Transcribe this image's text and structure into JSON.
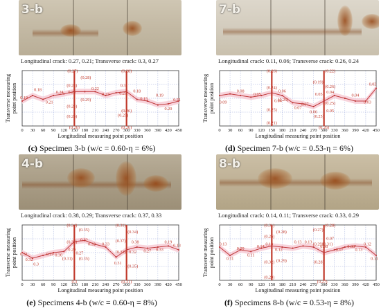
{
  "axis": {
    "xlabel": "Longitudinal measuring point position",
    "ylabel_line1": "Transverse measuring",
    "ylabel_line2": "point position",
    "xticks": [
      0,
      30,
      60,
      90,
      120,
      150,
      180,
      210,
      240,
      270,
      300,
      330,
      360,
      390,
      420,
      450
    ]
  },
  "colors": {
    "curve": "#c0393b",
    "band": "#f6c9d3",
    "crack": "#c0392b",
    "grid": "#8a9ad6"
  },
  "chart_data": [
    {
      "type": "line",
      "id": "3-b",
      "photo_label": "3-b",
      "crack_text": "Longitudinal crack: 0.27, 0.21; Transverse crack: 0.3, 0.27",
      "caption_bold": "(c)",
      "caption_text": " Specimen 3-b (w/c = 0.60-η = 6%)",
      "x": [
        0,
        30,
        60,
        90,
        120,
        150,
        180,
        210,
        240,
        270,
        300,
        330,
        360,
        390,
        420,
        450
      ],
      "y": [
        0.45,
        0.55,
        0.48,
        0.55,
        0.58,
        0.62,
        0.62,
        0.62,
        0.55,
        0.6,
        0.62,
        0.48,
        0.45,
        0.38,
        0.4,
        0.45
      ],
      "xlim": [
        0,
        450
      ],
      "ylim": [
        0,
        1
      ],
      "cracks_x": [
        150,
        300
      ],
      "labels": [
        {
          "t": "0.19",
          "x": 5,
          "y": 0.52
        },
        {
          "t": "0.18",
          "x": 45,
          "y": 0.66
        },
        {
          "t": "0.21",
          "x": 78,
          "y": 0.44
        },
        {
          "t": "0.24",
          "x": 108,
          "y": 0.62
        },
        {
          "t": "(0.27)",
          "x": 145,
          "y": 1.0
        },
        {
          "t": "(0.28)",
          "x": 143,
          "y": 0.74
        },
        {
          "t": "0.23",
          "x": 143,
          "y": 0.62
        },
        {
          "t": "(0.24)",
          "x": 143,
          "y": 0.36
        },
        {
          "t": "(0.26)",
          "x": 143,
          "y": 0.18
        },
        {
          "t": "(0.28)",
          "x": 183,
          "y": 0.88
        },
        {
          "t": "0.22",
          "x": 210,
          "y": 0.68
        },
        {
          "t": "(0.29)",
          "x": 183,
          "y": 0.48
        },
        {
          "t": "0.23",
          "x": 240,
          "y": 0.58
        },
        {
          "t": "(0.28)",
          "x": 300,
          "y": 1.0
        },
        {
          "t": "0.3",
          "x": 290,
          "y": 0.74
        },
        {
          "t": "0.18",
          "x": 330,
          "y": 0.64
        },
        {
          "t": "0.25",
          "x": 290,
          "y": 0.6
        },
        {
          "t": "0.15",
          "x": 350,
          "y": 0.5
        },
        {
          "t": "(0.26)",
          "x": 300,
          "y": 0.28
        },
        {
          "t": "(0.25)",
          "x": 290,
          "y": 0.2
        },
        {
          "t": "0.19",
          "x": 395,
          "y": 0.56
        },
        {
          "t": "0.20",
          "x": 420,
          "y": 0.32
        },
        {
          "t": "0.21",
          "x": 445,
          "y": 0.48
        },
        {
          "t": "(0.26)",
          "x": 150,
          "y": -0.02
        },
        {
          "t": "(0.26)",
          "x": 300,
          "y": -0.02
        }
      ]
    },
    {
      "type": "line",
      "id": "7-b",
      "photo_label": "7-b",
      "crack_text": "Longitudinal crack: 0.11, 0.06; Transverse crack: 0.26, 0.24",
      "caption_bold": "(d)",
      "caption_text": " Specimen 7-b (w/c = 0.53-η = 6%)",
      "x": [
        0,
        30,
        60,
        90,
        120,
        150,
        180,
        210,
        240,
        270,
        300,
        330,
        360,
        390,
        420,
        450
      ],
      "y": [
        0.55,
        0.58,
        0.55,
        0.52,
        0.55,
        0.6,
        0.55,
        0.42,
        0.4,
        0.35,
        0.45,
        0.55,
        0.5,
        0.45,
        0.45,
        0.68
      ],
      "xlim": [
        0,
        450
      ],
      "ylim": [
        0,
        1
      ],
      "cracks_x": [
        150,
        300
      ],
      "labels": [
        {
          "t": "0.09",
          "x": 10,
          "y": 0.44
        },
        {
          "t": "0.08",
          "x": 60,
          "y": 0.64
        },
        {
          "t": "0.05",
          "x": 108,
          "y": 0.58
        },
        {
          "t": "(0.26)",
          "x": 150,
          "y": 1.0
        },
        {
          "t": "(0.24)",
          "x": 150,
          "y": 0.7
        },
        {
          "t": "0.04",
          "x": 168,
          "y": 0.46
        },
        {
          "t": "(0.25)",
          "x": 150,
          "y": 0.3
        },
        {
          "t": "(0.21)",
          "x": 150,
          "y": 0.06
        },
        {
          "t": "0.06",
          "x": 180,
          "y": 0.64
        },
        {
          "t": "(0.25)",
          "x": 183,
          "y": 0.48
        },
        {
          "t": "0.07",
          "x": 245,
          "y": 0.4
        },
        {
          "t": "0.07",
          "x": 225,
          "y": 0.34
        },
        {
          "t": "(0.19)",
          "x": 283,
          "y": 0.8
        },
        {
          "t": "0.05",
          "x": 285,
          "y": 0.58
        },
        {
          "t": "0.06",
          "x": 270,
          "y": 0.26
        },
        {
          "t": "(0.25)",
          "x": 285,
          "y": 0.18
        },
        {
          "t": "(0.22)",
          "x": 318,
          "y": 1.0
        },
        {
          "t": "(0.26)",
          "x": 318,
          "y": 0.72
        },
        {
          "t": "0.04",
          "x": 318,
          "y": 0.62
        },
        {
          "t": "(0.25)",
          "x": 318,
          "y": 0.42
        },
        {
          "t": "0.05",
          "x": 318,
          "y": 0.28
        },
        {
          "t": "(0.26)",
          "x": 300,
          "y": -0.02
        },
        {
          "t": "0.04",
          "x": 390,
          "y": 0.56
        },
        {
          "t": "0.03",
          "x": 425,
          "y": 0.44
        },
        {
          "t": "0.03",
          "x": 440,
          "y": 0.76
        }
      ]
    },
    {
      "type": "line",
      "id": "4-b",
      "photo_label": "4-b",
      "crack_text": "Longitudinal crack: 0.38, 0.29; Transverse crack: 0.37, 0.33",
      "caption_bold": "(e)",
      "caption_text": " Specimens 4-b (w/c = 0.60-η = 8%)",
      "x": [
        0,
        30,
        60,
        90,
        120,
        150,
        180,
        210,
        240,
        270,
        300,
        330,
        360,
        390,
        420,
        450
      ],
      "y": [
        0.5,
        0.4,
        0.45,
        0.5,
        0.52,
        0.7,
        0.72,
        0.65,
        0.6,
        0.42,
        0.55,
        0.6,
        0.58,
        0.6,
        0.62,
        0.55
      ],
      "xlim": [
        0,
        450
      ],
      "ylim": [
        0,
        1
      ],
      "cracks_x": [
        150,
        300
      ],
      "labels": [
        {
          "t": "0.31",
          "x": 5,
          "y": 0.48
        },
        {
          "t": "0.32",
          "x": 20,
          "y": 0.38
        },
        {
          "t": "0.3",
          "x": 40,
          "y": 0.3
        },
        {
          "t": "0.29",
          "x": 80,
          "y": 0.48
        },
        {
          "t": "0.30",
          "x": 105,
          "y": 0.46
        },
        {
          "t": "(0.34)",
          "x": 143,
          "y": 1.0
        },
        {
          "t": "(0.34)",
          "x": 143,
          "y": 0.7
        },
        {
          "t": "0.29",
          "x": 143,
          "y": 0.56
        },
        {
          "t": "(0.31)",
          "x": 130,
          "y": 0.4
        },
        {
          "t": "(0.35)",
          "x": 178,
          "y": 0.92
        },
        {
          "t": "0.32",
          "x": 178,
          "y": 0.74
        },
        {
          "t": "0.27",
          "x": 165,
          "y": 0.5
        },
        {
          "t": "(0.35)",
          "x": 178,
          "y": 0.4
        },
        {
          "t": "0.32",
          "x": 200,
          "y": 0.66
        },
        {
          "t": "0.33",
          "x": 240,
          "y": 0.66
        },
        {
          "t": "(0.31)",
          "x": 283,
          "y": 1.0
        },
        {
          "t": "(0.37)",
          "x": 283,
          "y": 0.72
        },
        {
          "t": "(0.33)",
          "x": 283,
          "y": 0.52
        },
        {
          "t": "0.31",
          "x": 275,
          "y": 0.32
        },
        {
          "t": "(0.34)",
          "x": 318,
          "y": 0.88
        },
        {
          "t": "0.38",
          "x": 325,
          "y": 0.7
        },
        {
          "t": "0.32",
          "x": 318,
          "y": 0.52
        },
        {
          "t": "(0.35)",
          "x": 318,
          "y": 0.26
        },
        {
          "t": "0.27",
          "x": 360,
          "y": 0.54
        },
        {
          "t": "0.33",
          "x": 395,
          "y": 0.56
        },
        {
          "t": "0.19",
          "x": 420,
          "y": 0.7
        },
        {
          "t": "0.13",
          "x": 445,
          "y": 0.64
        },
        {
          "t": "0.3",
          "x": 150,
          "y": -0.02
        },
        {
          "t": "(0.31)",
          "x": 300,
          "y": -0.02
        }
      ]
    },
    {
      "type": "line",
      "id": "8-b",
      "photo_label": "8-b",
      "crack_text": "Longitudinal crack: 0.14, 0.11; Transverse crack: 0.33, 0.29",
      "caption_bold": "(f)",
      "caption_text": " Specimens 8-b (w/c = 0.53-η = 8%)",
      "x": [
        0,
        30,
        60,
        90,
        120,
        150,
        180,
        210,
        240,
        270,
        300,
        330,
        360,
        390,
        420,
        450
      ],
      "y": [
        0.6,
        0.45,
        0.55,
        0.52,
        0.58,
        0.62,
        0.6,
        0.58,
        0.62,
        0.6,
        0.5,
        0.55,
        0.6,
        0.62,
        0.6,
        0.45
      ],
      "xlim": [
        0,
        450
      ],
      "ylim": [
        0,
        1
      ],
      "cracks_x": [
        150,
        300
      ],
      "labels": [
        {
          "t": "0.13",
          "x": 10,
          "y": 0.66
        },
        {
          "t": "0.11",
          "x": 30,
          "y": 0.4
        },
        {
          "t": "0.09",
          "x": 60,
          "y": 0.58
        },
        {
          "t": "0.11",
          "x": 90,
          "y": 0.46
        },
        {
          "t": "0.14",
          "x": 118,
          "y": 0.62
        },
        {
          "t": "(0.31)",
          "x": 143,
          "y": 1.0
        },
        {
          "t": "(0.26)",
          "x": 143,
          "y": 0.8
        },
        {
          "t": "0.13",
          "x": 143,
          "y": 0.66
        },
        {
          "t": "(0.32)",
          "x": 143,
          "y": 0.34
        },
        {
          "t": "(0.29)",
          "x": 143,
          "y": 0.06
        },
        {
          "t": "(0.28)",
          "x": 178,
          "y": 0.88
        },
        {
          "t": "0.12",
          "x": 170,
          "y": 0.56
        },
        {
          "t": "(0.29)",
          "x": 178,
          "y": 0.36
        },
        {
          "t": "0.13",
          "x": 225,
          "y": 0.7
        },
        {
          "t": "0.13",
          "x": 255,
          "y": 0.7
        },
        {
          "t": "(0.27)",
          "x": 283,
          "y": 0.92
        },
        {
          "t": "(0.28)",
          "x": 318,
          "y": 1.0
        },
        {
          "t": "0.07",
          "x": 318,
          "y": 0.76
        },
        {
          "t": "(0.29)",
          "x": 283,
          "y": 0.66
        },
        {
          "t": "0.08",
          "x": 300,
          "y": 0.62
        },
        {
          "t": "(0.31)",
          "x": 310,
          "y": 0.66
        },
        {
          "t": "(0.28)",
          "x": 285,
          "y": 0.34
        },
        {
          "t": "0.07",
          "x": 345,
          "y": 0.56
        },
        {
          "t": "0.08",
          "x": 378,
          "y": 0.62
        },
        {
          "t": "0.13",
          "x": 400,
          "y": 0.56
        },
        {
          "t": "0.12",
          "x": 425,
          "y": 0.66
        },
        {
          "t": "0.11",
          "x": 445,
          "y": 0.4
        },
        {
          "t": "(0.27)",
          "x": 295,
          "y": -0.02
        }
      ]
    }
  ]
}
